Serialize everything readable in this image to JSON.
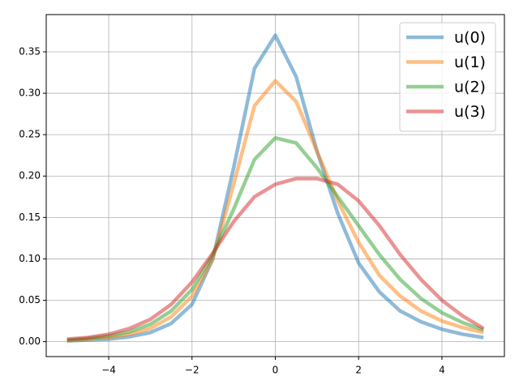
{
  "chart_data": {
    "type": "line",
    "x": [
      -5,
      -4.5,
      -4,
      -3.5,
      -3,
      -2.5,
      -2,
      -1.5,
      -1,
      -0.5,
      0,
      0.5,
      1,
      1.5,
      2,
      2.5,
      3,
      3.5,
      4,
      4.5,
      5
    ],
    "series": [
      {
        "name": "u(0)",
        "color": "#1f77b4",
        "values": [
          0.001,
          0.002,
          0.003,
          0.006,
          0.011,
          0.022,
          0.045,
          0.1,
          0.21,
          0.33,
          0.37,
          0.32,
          0.23,
          0.155,
          0.095,
          0.06,
          0.037,
          0.024,
          0.015,
          0.009,
          0.005
        ]
      },
      {
        "name": "u(1)",
        "color": "#ff7f0e",
        "values": [
          0.001,
          0.003,
          0.005,
          0.009,
          0.016,
          0.03,
          0.055,
          0.1,
          0.19,
          0.285,
          0.315,
          0.29,
          0.23,
          0.17,
          0.12,
          0.08,
          0.055,
          0.037,
          0.025,
          0.017,
          0.011
        ]
      },
      {
        "name": "u(2)",
        "color": "#2ca02c",
        "values": [
          0.002,
          0.004,
          0.007,
          0.012,
          0.021,
          0.037,
          0.063,
          0.105,
          0.16,
          0.22,
          0.246,
          0.24,
          0.21,
          0.175,
          0.14,
          0.105,
          0.075,
          0.052,
          0.035,
          0.023,
          0.014
        ]
      },
      {
        "name": "u(3)",
        "color": "#d62728",
        "values": [
          0.003,
          0.005,
          0.009,
          0.016,
          0.027,
          0.045,
          0.072,
          0.107,
          0.145,
          0.175,
          0.19,
          0.197,
          0.197,
          0.19,
          0.17,
          0.14,
          0.105,
          0.075,
          0.05,
          0.031,
          0.016
        ]
      }
    ],
    "xlim": [
      -5.5,
      5.5
    ],
    "ylim": [
      -0.018,
      0.395
    ],
    "xticks": [
      {
        "value": -4,
        "label": "−4"
      },
      {
        "value": -2,
        "label": "−2"
      },
      0,
      2,
      4
    ],
    "yticks": [
      {
        "value": 0,
        "label": "0.00"
      },
      {
        "value": 0.05,
        "label": "0.05"
      },
      {
        "value": 0.1,
        "label": "0.10"
      },
      {
        "value": 0.15,
        "label": "0.15"
      },
      {
        "value": 0.2,
        "label": "0.20"
      },
      {
        "value": 0.25,
        "label": "0.25"
      },
      {
        "value": 0.3,
        "label": "0.30"
      },
      {
        "value": 0.35,
        "label": "0.35"
      }
    ],
    "grid": true,
    "legend": "upper right"
  }
}
